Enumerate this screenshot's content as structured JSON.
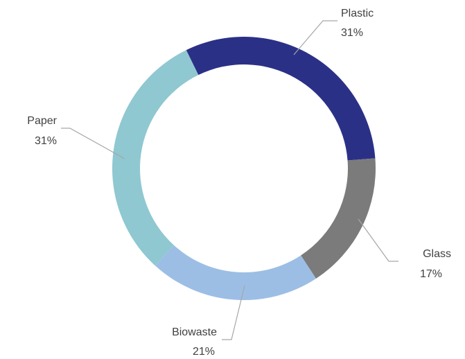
{
  "chart_data": {
    "type": "pie",
    "donut": true,
    "title": "",
    "legend": "none",
    "slices": [
      {
        "label": "Plastic",
        "value": 31,
        "value_label": "31%",
        "color": "#2b3087"
      },
      {
        "label": "Glass",
        "value": 17,
        "value_label": "17%",
        "color": "#7b7b7b"
      },
      {
        "label": "Biowaste",
        "value": 21,
        "value_label": "21%",
        "color": "#9dbee4"
      },
      {
        "label": "Paper",
        "value": 31,
        "value_label": "31%",
        "color": "#8fc8d1"
      }
    ]
  }
}
